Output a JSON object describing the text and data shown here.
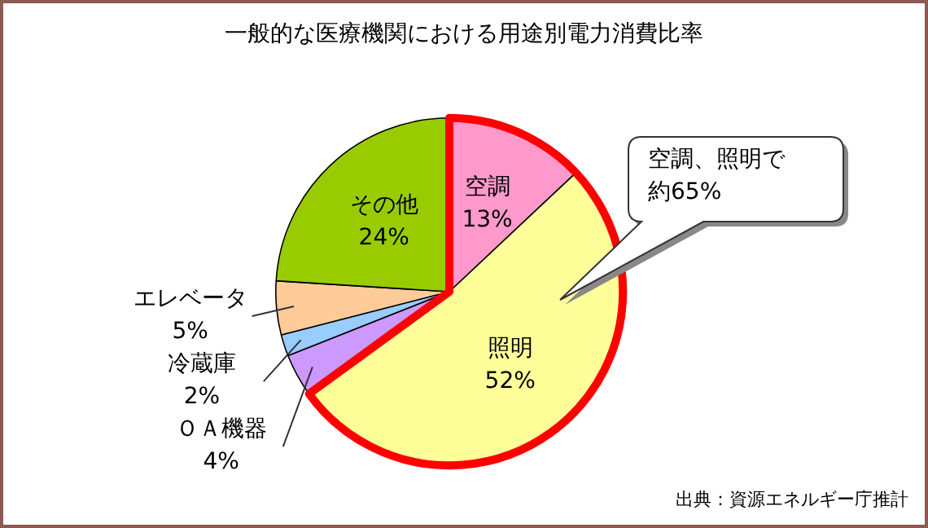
{
  "chart_data": {
    "type": "pie",
    "title": "一般的な医療機関における用途別電力消費比率",
    "categories": [
      "空調",
      "照明",
      "ＯＡ機器",
      "冷蔵庫",
      "エレベータ",
      "その他"
    ],
    "values": [
      13,
      52,
      4,
      2,
      5,
      24
    ],
    "colors": [
      "#ff99cc",
      "#ffff99",
      "#cc99ff",
      "#99ccff",
      "#ffcc99",
      "#99cc00"
    ],
    "value_labels": [
      "13%",
      "52%",
      "4%",
      "2%",
      "5%",
      "24%"
    ],
    "legend": false,
    "annotations": [
      "空調、照明で約65%",
      "出典：資源エネルギー庁推計"
    ]
  }
}
